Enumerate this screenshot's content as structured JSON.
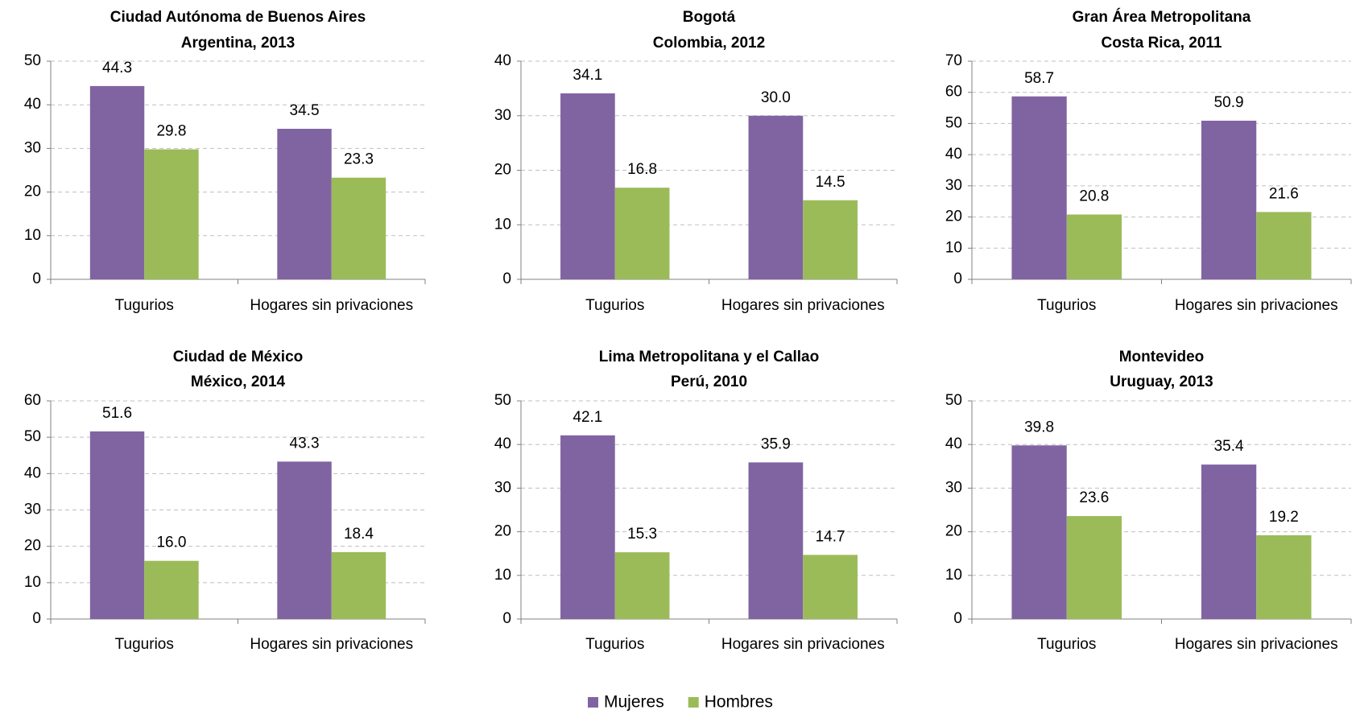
{
  "chart_data": [
    {
      "type": "bar",
      "title": [
        "Ciudad Autónoma de Buenos Aires",
        "Argentina, 2013"
      ],
      "categories": [
        "Tugurios",
        "Hogares sin privaciones"
      ],
      "series": [
        {
          "values": [
            44.3,
            34.5
          ],
          "value_labels": [
            "44.3",
            "34.5"
          ]
        },
        {
          "values": [
            29.8,
            23.3
          ],
          "value_labels": [
            "29.8",
            "23.3"
          ]
        }
      ],
      "ylim": [
        0,
        50
      ],
      "yticks": [
        0,
        10,
        20,
        30,
        40,
        50
      ],
      "grid": true
    },
    {
      "type": "bar",
      "title": [
        "Bogotá",
        "Colombia, 2012"
      ],
      "categories": [
        "Tugurios",
        "Hogares sin privaciones"
      ],
      "series": [
        {
          "values": [
            34.1,
            30.0
          ],
          "value_labels": [
            "34.1",
            "30.0"
          ]
        },
        {
          "values": [
            16.8,
            14.5
          ],
          "value_labels": [
            "16.8",
            "14.5"
          ]
        }
      ],
      "ylim": [
        0,
        40
      ],
      "yticks": [
        0,
        10,
        20,
        30,
        40
      ],
      "grid": true
    },
    {
      "type": "bar",
      "title": [
        "Gran Área Metropolitana",
        "Costa Rica, 2011"
      ],
      "categories": [
        "Tugurios",
        "Hogares sin privaciones"
      ],
      "series": [
        {
          "values": [
            58.7,
            50.9
          ],
          "value_labels": [
            "58.7",
            "50.9"
          ]
        },
        {
          "values": [
            20.8,
            21.6
          ],
          "value_labels": [
            "20.8",
            "21.6"
          ]
        }
      ],
      "ylim": [
        0,
        70
      ],
      "yticks": [
        0,
        10,
        20,
        30,
        40,
        50,
        60,
        70
      ],
      "grid": true
    },
    {
      "type": "bar",
      "title": [
        "Ciudad de México",
        "México, 2014"
      ],
      "categories": [
        "Tugurios",
        "Hogares sin privaciones"
      ],
      "series": [
        {
          "values": [
            51.6,
            43.3
          ],
          "value_labels": [
            "51.6",
            "43.3"
          ]
        },
        {
          "values": [
            16.0,
            18.4
          ],
          "value_labels": [
            "16.0",
            "18.4"
          ]
        }
      ],
      "ylim": [
        0,
        60
      ],
      "yticks": [
        0,
        10,
        20,
        30,
        40,
        50,
        60
      ],
      "grid": true
    },
    {
      "type": "bar",
      "title": [
        "Lima Metropolitana y el Callao",
        "Perú, 2010"
      ],
      "categories": [
        "Tugurios",
        "Hogares sin privaciones"
      ],
      "series": [
        {
          "values": [
            42.1,
            35.9
          ],
          "value_labels": [
            "42.1",
            "35.9"
          ]
        },
        {
          "values": [
            15.3,
            14.7
          ],
          "value_labels": [
            "15.3",
            "14.7"
          ]
        }
      ],
      "ylim": [
        0,
        50
      ],
      "yticks": [
        0,
        10,
        20,
        30,
        40,
        50
      ],
      "grid": true
    },
    {
      "type": "bar",
      "title": [
        "Montevideo",
        "Uruguay, 2013"
      ],
      "categories": [
        "Tugurios",
        "Hogares sin privaciones"
      ],
      "series": [
        {
          "values": [
            39.8,
            35.4
          ],
          "value_labels": [
            "39.8",
            "35.4"
          ]
        },
        {
          "values": [
            23.6,
            19.2
          ],
          "value_labels": [
            "23.6",
            "19.2"
          ]
        }
      ],
      "ylim": [
        0,
        50
      ],
      "yticks": [
        0,
        10,
        20,
        30,
        40,
        50
      ],
      "grid": true
    }
  ],
  "legend": [
    {
      "name": "Mujeres",
      "color": "#8064a2"
    },
    {
      "name": "Hombres",
      "color": "#9bbb59"
    }
  ]
}
